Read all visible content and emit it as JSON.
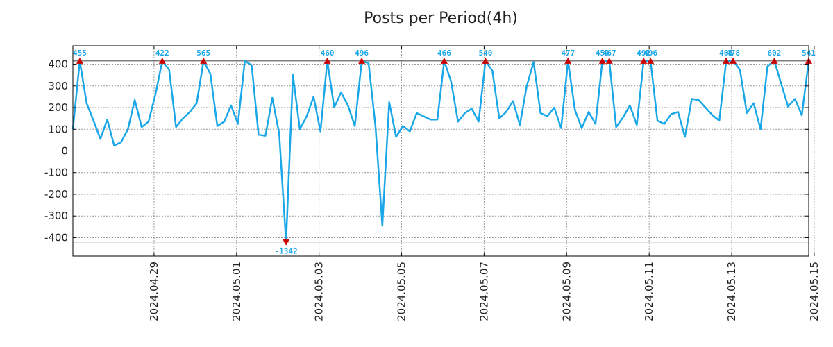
{
  "chart_data": {
    "type": "line",
    "title": "Posts per Period(4h)",
    "xlabel": "",
    "ylabel": "",
    "ylim": [
      -485,
      485
    ],
    "y_ticks": [
      400,
      300,
      200,
      100,
      0,
      -100,
      -200,
      -300,
      -400
    ],
    "x_ticks": [
      {
        "label": "2024.04.29",
        "t": 11.8
      },
      {
        "label": "2024.05.01",
        "t": 23.8
      },
      {
        "label": "2024.05.03",
        "t": 35.8
      },
      {
        "label": "2024.05.05",
        "t": 47.8
      },
      {
        "label": "2024.05.07",
        "t": 59.8
      },
      {
        "label": "2024.05.09",
        "t": 71.8
      },
      {
        "label": "2024.05.11",
        "t": 83.8
      },
      {
        "label": "2024.05.13",
        "t": 95.8
      },
      {
        "label": "2024.05.15",
        "t": 107.8
      }
    ],
    "clip_levels": {
      "upper": 415,
      "lower": -420
    },
    "series": [
      {
        "name": "Posts",
        "color": "#1aa7e8",
        "values": [
          100,
          455,
          220,
          140,
          55,
          145,
          25,
          40,
          100,
          235,
          110,
          135,
          260,
          422,
          375,
          110,
          150,
          180,
          220,
          565,
          355,
          115,
          135,
          210,
          125,
          415,
          395,
          75,
          70,
          245,
          80,
          -1342,
          350,
          100,
          160,
          250,
          90,
          460,
          200,
          270,
          210,
          115,
          496,
          405,
          115,
          -345,
          225,
          65,
          115,
          90,
          175,
          160,
          145,
          145,
          466,
          320,
          135,
          175,
          195,
          135,
          540,
          370,
          150,
          180,
          230,
          120,
          300,
          410,
          175,
          160,
          200,
          105,
          477,
          190,
          105,
          180,
          125,
          459,
          467,
          110,
          155,
          210,
          120,
          491,
          496,
          140,
          125,
          170,
          180,
          65,
          240,
          235,
          200,
          165,
          140,
          461,
          478,
          375,
          175,
          220,
          100,
          390,
          602,
          310,
          205,
          240,
          165,
          541
        ]
      }
    ],
    "markers": [
      {
        "index": 1,
        "label": "455",
        "dir": "up"
      },
      {
        "index": 13,
        "label": "422",
        "dir": "up"
      },
      {
        "index": 19,
        "label": "565",
        "dir": "up"
      },
      {
        "index": 31,
        "label": "-1342",
        "dir": "down"
      },
      {
        "index": 37,
        "label": "460",
        "dir": "up"
      },
      {
        "index": 42,
        "label": "496",
        "dir": "up"
      },
      {
        "index": 54,
        "label": "466",
        "dir": "up"
      },
      {
        "index": 60,
        "label": "540",
        "dir": "up"
      },
      {
        "index": 72,
        "label": "477",
        "dir": "up"
      },
      {
        "index": 77,
        "label": "459",
        "dir": "up"
      },
      {
        "index": 78,
        "label": "467",
        "dir": "up"
      },
      {
        "index": 83,
        "label": "491",
        "dir": "up"
      },
      {
        "index": 84,
        "label": "496",
        "dir": "up"
      },
      {
        "index": 95,
        "label": "461",
        "dir": "up"
      },
      {
        "index": 96,
        "label": "478",
        "dir": "up"
      },
      {
        "index": 102,
        "label": "602",
        "dir": "up"
      },
      {
        "index": 107,
        "label": "541",
        "dir": "up"
      }
    ],
    "colors": {
      "line": "#1aa7e8",
      "marker": "#cc0000",
      "grid": "#999999",
      "axis": "#000000"
    }
  }
}
